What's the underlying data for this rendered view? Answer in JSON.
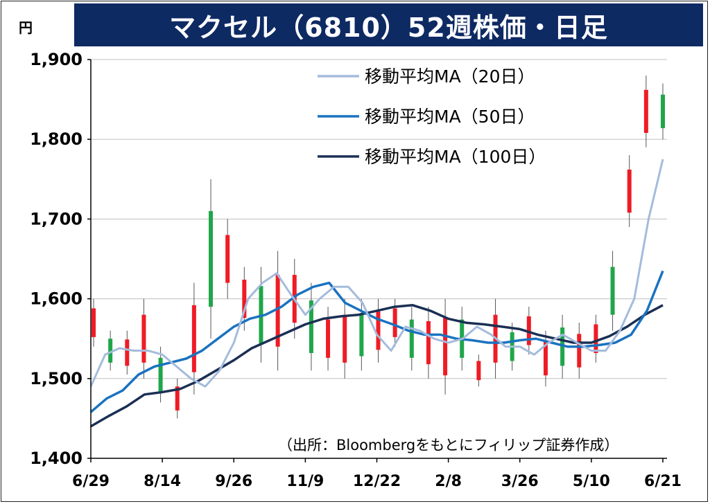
{
  "title": "マクセル（6810）52週株価・日足",
  "unit": "円",
  "source": "（出所：Bloombergをもとにフィリップ証券作成）",
  "colors": {
    "title_bg": "#0e2a63",
    "up_candle": "#ee1c25",
    "down_candle": "#1fa64a",
    "ma20": "#a4bbdc",
    "ma50": "#1a72c0",
    "ma100": "#1b2f54",
    "grid": "#bfbfbf"
  },
  "chart_data": {
    "type": "candlestick-line",
    "x_tick_labels": [
      "6/29",
      "8/14",
      "9/26",
      "11/9",
      "12/22",
      "2/8",
      "3/26",
      "5/10",
      "6/21"
    ],
    "ylim": [
      1400,
      1900
    ],
    "y_ticks": [
      1400,
      1500,
      1600,
      1700,
      1800,
      1900
    ],
    "y_tick_labels": [
      "1,400",
      "1,500",
      "1,600",
      "1,700",
      "1,800",
      "1,900"
    ],
    "grid": "horizontal",
    "legend_position": "top-right",
    "series": [
      {
        "name": "移動平均MA（20日）",
        "color": "#a4bbdc",
        "values": [
          1490,
          1530,
          1538,
          1535,
          1535,
          1530,
          1515,
          1500,
          1490,
          1510,
          1545,
          1600,
          1620,
          1632,
          1605,
          1580,
          1600,
          1615,
          1615,
          1595,
          1555,
          1535,
          1565,
          1560,
          1550,
          1545,
          1550,
          1565,
          1555,
          1540,
          1540,
          1530,
          1545,
          1555,
          1545,
          1535,
          1535,
          1560,
          1600,
          1700,
          1775
        ]
      },
      {
        "name": "移動平均MA（50日）",
        "color": "#1a72c0",
        "values": [
          1458,
          1475,
          1485,
          1505,
          1515,
          1520,
          1525,
          1535,
          1550,
          1565,
          1575,
          1580,
          1590,
          1605,
          1615,
          1620,
          1595,
          1585,
          1575,
          1568,
          1560,
          1555,
          1555,
          1550,
          1548,
          1545,
          1545,
          1548,
          1550,
          1545,
          1540,
          1540,
          1542,
          1545,
          1555,
          1585,
          1635
        ]
      },
      {
        "name": "移動平均MA（100日）",
        "color": "#1b2f54",
        "values": [
          1440,
          1453,
          1465,
          1480,
          1483,
          1487,
          1497,
          1510,
          1523,
          1538,
          1548,
          1558,
          1568,
          1575,
          1578,
          1580,
          1585,
          1590,
          1592,
          1585,
          1575,
          1570,
          1568,
          1565,
          1562,
          1555,
          1550,
          1545,
          1545,
          1553,
          1565,
          1580,
          1592
        ]
      }
    ],
    "candle_ranges": [
      [
        1540,
        1600
      ],
      [
        1510,
        1560
      ],
      [
        1505,
        1560
      ],
      [
        1500,
        1600
      ],
      [
        1470,
        1540
      ],
      [
        1450,
        1500
      ],
      [
        1480,
        1620
      ],
      [
        1550,
        1750
      ],
      [
        1600,
        1700
      ],
      [
        1560,
        1640
      ],
      [
        1520,
        1640
      ],
      [
        1510,
        1660
      ],
      [
        1550,
        1650
      ],
      [
        1510,
        1620
      ],
      [
        1510,
        1590
      ],
      [
        1500,
        1600
      ],
      [
        1510,
        1600
      ],
      [
        1520,
        1600
      ],
      [
        1540,
        1600
      ],
      [
        1510,
        1590
      ],
      [
        1500,
        1590
      ],
      [
        1480,
        1600
      ],
      [
        1510,
        1590
      ],
      [
        1490,
        1530
      ],
      [
        1500,
        1600
      ],
      [
        1510,
        1570
      ],
      [
        1530,
        1590
      ],
      [
        1490,
        1560
      ],
      [
        1500,
        1580
      ],
      [
        1500,
        1570
      ],
      [
        1520,
        1580
      ],
      [
        1560,
        1660
      ],
      [
        1690,
        1780
      ],
      [
        1790,
        1880
      ],
      [
        1800,
        1870
      ]
    ]
  }
}
